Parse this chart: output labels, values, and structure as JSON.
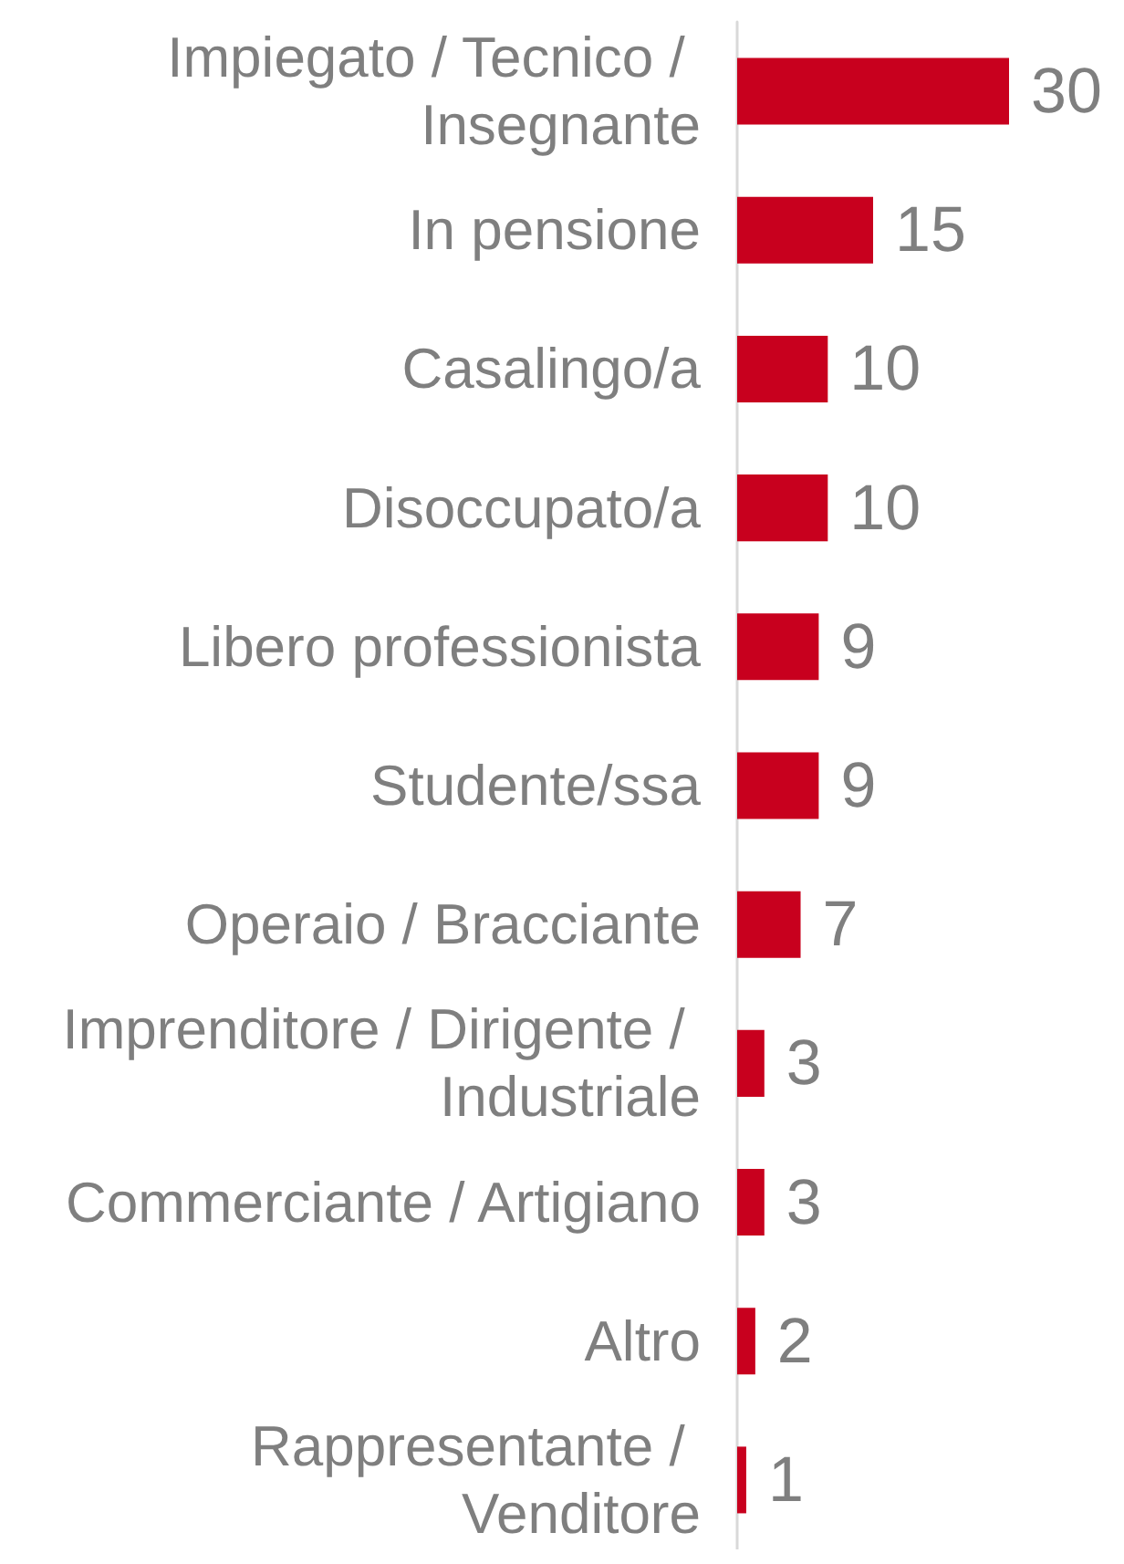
{
  "chart_data": {
    "type": "bar",
    "orientation": "horizontal",
    "categories": [
      "Impiegato / Tecnico / Insegnante",
      "In pensione",
      "Casalingo/a",
      "Disoccupato/a",
      "Libero professionista",
      "Studente/ssa",
      "Operaio / Bracciante",
      "Imprenditore / Dirigente / Industriale",
      "Commerciante / Artigiano",
      "Altro",
      "Rappresentante / Venditore"
    ],
    "values": [
      30,
      15,
      10,
      10,
      9,
      9,
      7,
      3,
      3,
      2,
      1
    ],
    "color": "#c8001e",
    "data_labels": true,
    "tick_labels": "y"
  }
}
